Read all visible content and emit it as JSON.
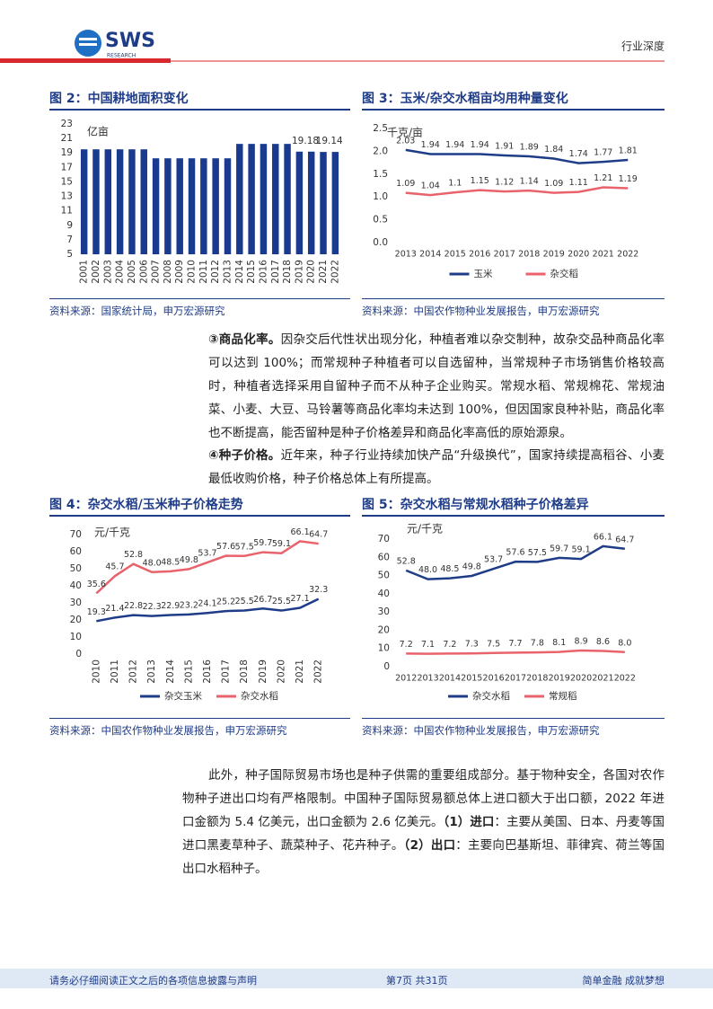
{
  "header": {
    "logo": "SWS",
    "logo_sub": "RESEARCH",
    "section": "行业深度"
  },
  "chart_data": [
    {
      "type": "bar",
      "title": "图 2：中国耕地面积变化",
      "y_label": "亿亩",
      "color": "#1a3a8f",
      "categories": [
        "2001",
        "2002",
        "2003",
        "2004",
        "2005",
        "2006",
        "2007",
        "2008",
        "2009",
        "2010",
        "2011",
        "2012",
        "2013",
        "2014",
        "2015",
        "2016",
        "2017",
        "2018",
        "2019",
        "2020",
        "2021",
        "2022"
      ],
      "values": [
        19.5,
        19.5,
        19.5,
        19.5,
        19.5,
        19.5,
        18.26,
        18.26,
        18.26,
        18.26,
        18.26,
        18.26,
        18.26,
        20.25,
        20.25,
        20.25,
        20.25,
        20.25,
        19.18,
        19.18,
        19.14,
        19.14
      ],
      "value_labels": [
        null,
        null,
        null,
        null,
        null,
        null,
        null,
        null,
        null,
        null,
        null,
        null,
        null,
        null,
        null,
        null,
        null,
        null,
        "19.18",
        null,
        "19.14",
        null
      ],
      "ylim": [
        5,
        23
      ],
      "yticks": [
        5,
        7,
        9,
        11,
        13,
        15,
        17,
        19,
        21,
        23
      ],
      "source": "资料来源：国家统计局，申万宏源研究"
    },
    {
      "type": "line",
      "title": "图 3：玉米/杂交水稻亩均用种量变化",
      "y_label": "千克/亩",
      "categories": [
        "2013",
        "2014",
        "2015",
        "2016",
        "2017",
        "2018",
        "2019",
        "2020",
        "2021",
        "2022"
      ],
      "series": [
        {
          "name": "玉米",
          "color": "#1f3c88",
          "values": [
            2.03,
            1.94,
            1.94,
            1.94,
            1.91,
            1.89,
            1.84,
            1.74,
            1.77,
            1.81
          ]
        },
        {
          "name": "杂交稻",
          "color": "#e8636b",
          "values": [
            1.09,
            1.04,
            1.1,
            1.15,
            1.12,
            1.14,
            1.09,
            1.11,
            1.21,
            1.19
          ]
        }
      ],
      "ylim": [
        0,
        2.5
      ],
      "yticks": [
        {
          "value": 0,
          "label": "0.0"
        },
        0.5,
        {
          "value": 1,
          "label": "1.0"
        },
        1.5,
        {
          "value": 2,
          "label": "2.0"
        },
        2.5
      ],
      "source": "资料来源：中国农作物种业发展报告，申万宏源研究"
    },
    {
      "type": "line",
      "title": "图 4：杂交水稻/玉米种子价格走势",
      "y_label": "元/千克",
      "categories": [
        "2010",
        "2011",
        "2012",
        "2013",
        "2014",
        "2015",
        "2016",
        "2017",
        "2018",
        "2019",
        "2020",
        "2021",
        "2022"
      ],
      "series": [
        {
          "name": "杂交玉米",
          "color": "#1f3c88",
          "values": [
            19.3,
            21.4,
            22.8,
            22.3,
            22.9,
            23.2,
            24.1,
            25.2,
            25.5,
            26.7,
            25.5,
            27.1,
            32.3
          ]
        },
        {
          "name": "杂交水稻",
          "color": "#e8636b",
          "values": [
            35.6,
            45.7,
            52.8,
            48.0,
            48.5,
            49.8,
            53.7,
            57.6,
            57.5,
            59.7,
            59.1,
            66.1,
            64.7
          ],
          "value_labels": [
            "35.6",
            "45.7",
            "52.8",
            "48.0",
            "48.5",
            "49.8",
            "53.7",
            "57.6",
            "57.5",
            "59.7",
            "59.1",
            "66.1",
            "64.7"
          ]
        }
      ],
      "ylim": [
        0,
        70
      ],
      "yticks": [
        0,
        10,
        20,
        30,
        40,
        50,
        60,
        70
      ],
      "source": "资料来源：中国农作物种业发展报告，申万宏源研究"
    },
    {
      "type": "line",
      "title": "图 5：杂交水稻与常规水稻种子价格差异",
      "y_label": "元/千克",
      "categories": [
        "2012",
        "2013",
        "2014",
        "2015",
        "2016",
        "2017",
        "2018",
        "2019",
        "2020",
        "2021",
        "2022"
      ],
      "series": [
        {
          "name": "杂交水稻",
          "color": "#1f3c88",
          "values": [
            52.8,
            48.0,
            48.5,
            49.8,
            53.7,
            57.6,
            57.5,
            59.7,
            59.1,
            66.1,
            64.7
          ],
          "value_labels": [
            "52.8",
            "48.0",
            "48.5",
            "49.8",
            "53.7",
            "57.6",
            "57.5",
            "59.7",
            "59.1",
            "66.1",
            "64.7"
          ]
        },
        {
          "name": "常规稻",
          "color": "#e8636b",
          "values": [
            7.2,
            7.1,
            7.2,
            7.3,
            7.5,
            7.7,
            7.8,
            8.1,
            8.9,
            8.6,
            8.0
          ],
          "value_labels": [
            "7.2",
            "7.1",
            "7.2",
            "7.3",
            "7.5",
            "7.7",
            "7.8",
            "8.1",
            "8.9",
            "8.6",
            "8.0"
          ]
        }
      ],
      "ylim": [
        0,
        70
      ],
      "yticks": [
        0,
        10,
        20,
        30,
        40,
        50,
        60,
        70
      ],
      "source": "资料来源：中国农作物种业发展报告，申万宏源研究"
    }
  ],
  "paragraphs": [
    [
      {
        "text": "③商品化率。",
        "bold": true
      },
      {
        "text": "因杂交后代性状出现分化，种植者难以杂交制种，故杂交品种商品化率可以达到 100%；而常规种子种植者可以自选留种，当常规种子市场销售价格较高时，种植者选择采用自留种子而不从种子企业购买。常规水稻、常规棉花、常规油菜、小麦、大豆、马铃薯等商品化率均未达到 100%，但因国家良种补贴，商品化率也不断提高，能否留种是种子价格差异和商品化率高低的原始源泉。",
        "bold": false
      }
    ],
    [
      {
        "text": "④种子价格。",
        "bold": true
      },
      {
        "text": "近年来，种子行业持续加快产品“升级换代”，国家持续提高稻谷、小麦最低收购价格，种子价格总体上有所提高。",
        "bold": false
      }
    ],
    [
      {
        "text": "此外，种子国际贸易市场也是种子供需的重要组成部分。基于物种安全，各国对农作物种子进出口均有严格限制。中国种子国际贸易额总体上进口额大于出口额，2022 年进口金额为 5.4 亿美元，出口金额为 2.6 亿美元。",
        "bold": false
      },
      {
        "text": "（1）进口",
        "bold": true
      },
      {
        "text": "：主要从美国、日本、丹麦等国进口黑麦草种子、蔬菜种子、花卉种子。",
        "bold": false
      },
      {
        "text": "（2）出口",
        "bold": true
      },
      {
        "text": "：主要向巴基斯坦、菲律宾、荷兰等国出口水稻种子。",
        "bold": false
      }
    ]
  ],
  "footer": {
    "disclaimer": "请务必仔细阅读正文之后的各项信息披露与声明",
    "page": "第7页 共31页",
    "slogan": "简单金融 成就梦想"
  }
}
